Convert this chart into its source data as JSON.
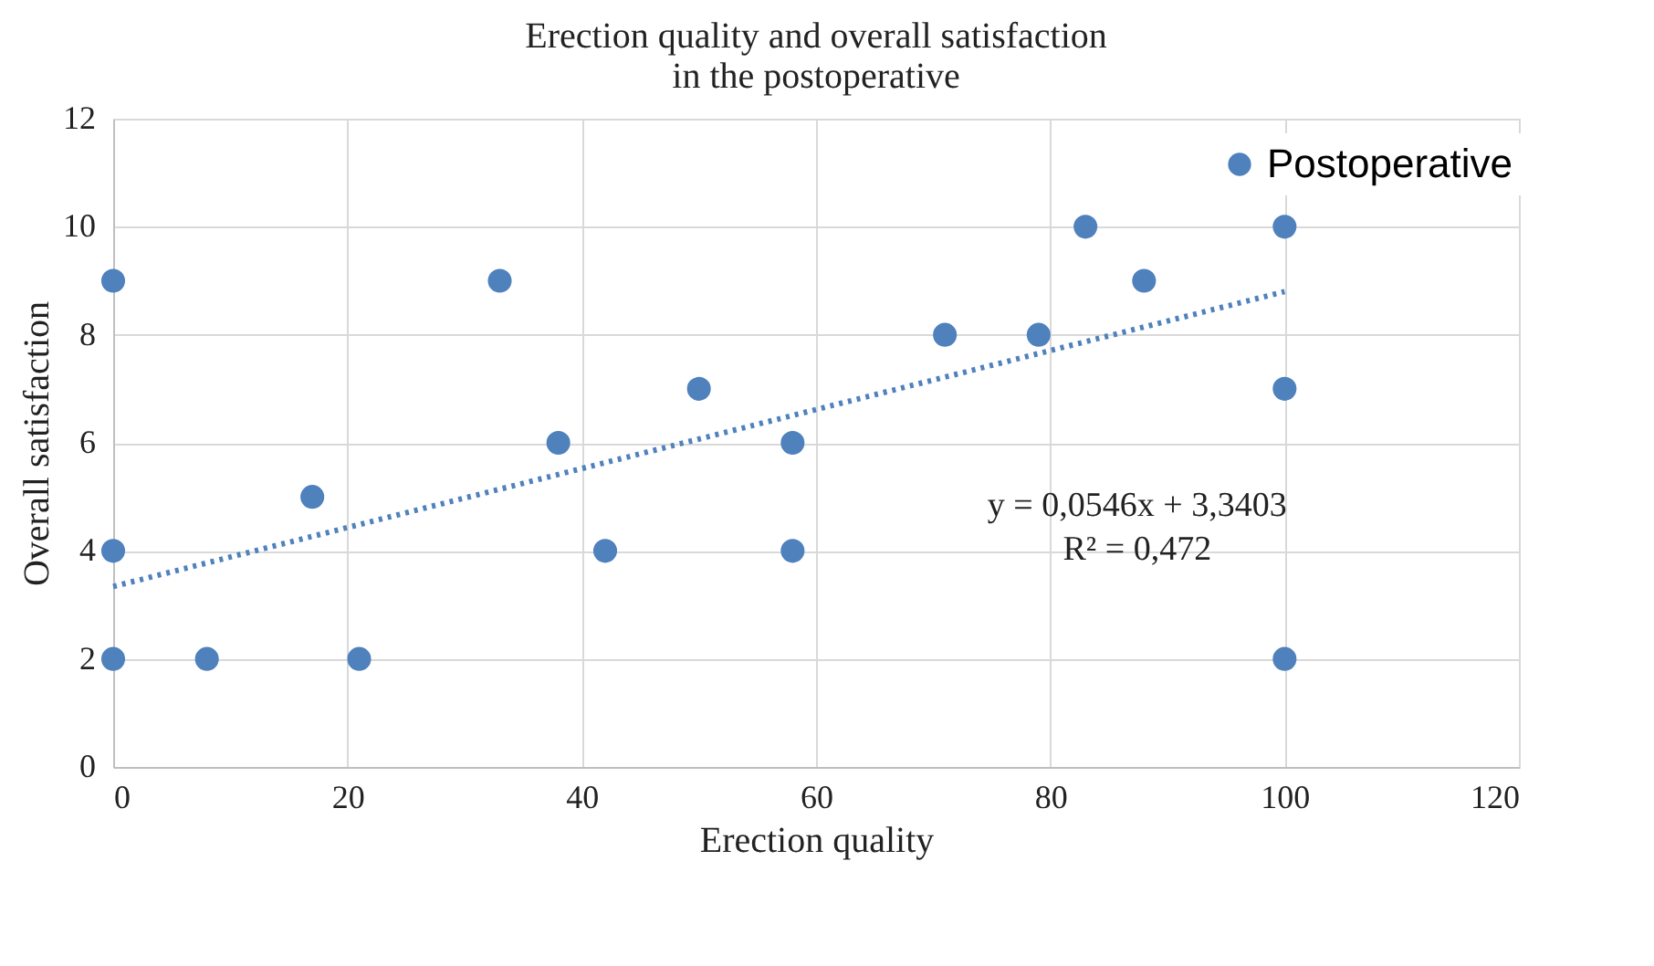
{
  "chart_data": {
    "type": "scatter",
    "title": "Erection quality and overall satisfaction\nin the postoperative",
    "xlabel": "Erection quality",
    "ylabel": "Overall satisfaction",
    "xlim": [
      0,
      120
    ],
    "xticks": [
      0,
      20,
      40,
      60,
      80,
      100,
      120
    ],
    "ylim": [
      0,
      12
    ],
    "yticks": [
      0,
      2,
      4,
      6,
      8,
      10,
      12
    ],
    "grid": true,
    "legend": "top right",
    "marker": "circle",
    "series": [
      {
        "name": "Postoperative",
        "color": "#4f81bd",
        "x": [
          0,
          0,
          0,
          8,
          17,
          21,
          33,
          38,
          42,
          50,
          58,
          58,
          71,
          79,
          83,
          88,
          100,
          100,
          100
        ],
        "values": [
          9,
          4,
          2,
          2,
          5,
          2,
          9,
          6,
          4,
          7,
          6,
          4,
          8,
          8,
          10,
          9,
          10,
          7,
          2
        ]
      },
      {
        "type": "line",
        "line_style": "dotted",
        "marker": "none",
        "color": "#4f81bd",
        "x": [
          0,
          100
        ],
        "values": [
          3.34,
          8.8
        ]
      }
    ],
    "annotations": [
      "y = 0,0546x + 3,3403",
      "R² = 0,472"
    ]
  }
}
